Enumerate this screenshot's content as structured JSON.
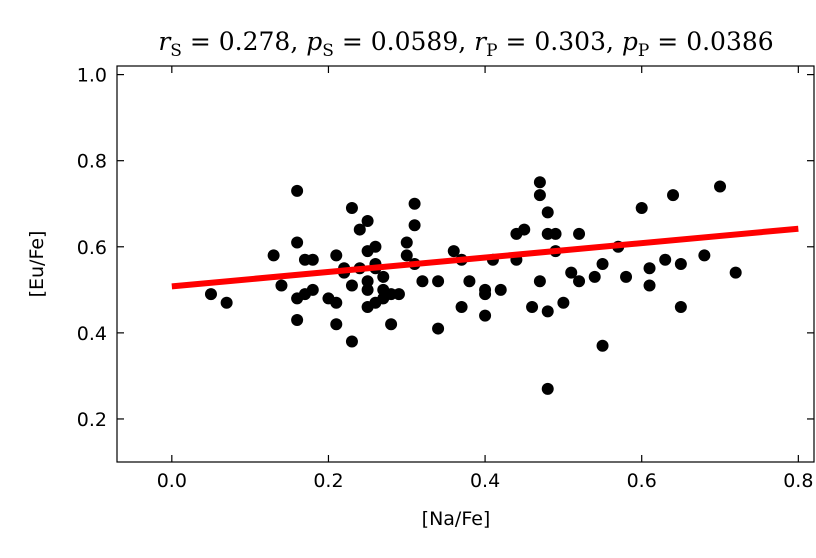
{
  "chart_data": {
    "type": "scatter",
    "title_parts": {
      "rS_symbol": "r",
      "rS_sub": "S",
      "rS_value": "0.278",
      "pS_symbol": "p",
      "pS_sub": "S",
      "pS_value": "0.0589",
      "rP_symbol": "r",
      "rP_sub": "P",
      "rP_value": "0.303",
      "pP_symbol": "p",
      "pP_sub": "P",
      "pP_value": "0.0386"
    },
    "xlabel": "[Na/Fe]",
    "ylabel": "[Eu/Fe]",
    "xlim": [
      -0.07,
      0.82
    ],
    "ylim": [
      0.1,
      1.02
    ],
    "x_ticks": [
      "0.0",
      "0.2",
      "0.4",
      "0.6",
      "0.8"
    ],
    "y_ticks": [
      "0.2",
      "0.4",
      "0.6",
      "0.8",
      "1.0"
    ],
    "grid": false,
    "points": {
      "color": "#000000",
      "x": [
        0.05,
        0.07,
        0.13,
        0.14,
        0.16,
        0.16,
        0.16,
        0.16,
        0.17,
        0.17,
        0.18,
        0.18,
        0.2,
        0.21,
        0.21,
        0.21,
        0.22,
        0.22,
        0.23,
        0.23,
        0.23,
        0.24,
        0.24,
        0.25,
        0.25,
        0.25,
        0.25,
        0.25,
        0.26,
        0.26,
        0.26,
        0.26,
        0.27,
        0.27,
        0.27,
        0.28,
        0.28,
        0.29,
        0.3,
        0.3,
        0.31,
        0.31,
        0.31,
        0.32,
        0.34,
        0.34,
        0.36,
        0.37,
        0.37,
        0.38,
        0.4,
        0.4,
        0.4,
        0.41,
        0.42,
        0.44,
        0.44,
        0.45,
        0.46,
        0.47,
        0.47,
        0.47,
        0.48,
        0.48,
        0.48,
        0.48,
        0.49,
        0.49,
        0.5,
        0.51,
        0.52,
        0.52,
        0.54,
        0.55,
        0.55,
        0.57,
        0.58,
        0.6,
        0.61,
        0.61,
        0.63,
        0.64,
        0.65,
        0.65,
        0.68,
        0.7,
        0.72
      ],
      "y": [
        0.49,
        0.47,
        0.58,
        0.51,
        0.73,
        0.61,
        0.48,
        0.43,
        0.57,
        0.49,
        0.57,
        0.5,
        0.48,
        0.58,
        0.47,
        0.42,
        0.55,
        0.54,
        0.69,
        0.51,
        0.38,
        0.64,
        0.55,
        0.66,
        0.59,
        0.52,
        0.5,
        0.46,
        0.6,
        0.56,
        0.55,
        0.47,
        0.53,
        0.5,
        0.48,
        0.49,
        0.42,
        0.49,
        0.61,
        0.58,
        0.7,
        0.65,
        0.56,
        0.52,
        0.52,
        0.41,
        0.59,
        0.57,
        0.46,
        0.52,
        0.5,
        0.49,
        0.44,
        0.57,
        0.5,
        0.63,
        0.57,
        0.64,
        0.46,
        0.75,
        0.72,
        0.52,
        0.68,
        0.63,
        0.45,
        0.27,
        0.63,
        0.59,
        0.47,
        0.54,
        0.63,
        0.52,
        0.53,
        0.56,
        0.37,
        0.6,
        0.53,
        0.69,
        0.55,
        0.51,
        0.57,
        0.72,
        0.56,
        0.46,
        0.58,
        0.74,
        0.54
      ]
    },
    "fit_line": {
      "color": "#ff0000",
      "x": [
        0.0,
        0.8
      ],
      "y": [
        0.508,
        0.642
      ]
    }
  }
}
